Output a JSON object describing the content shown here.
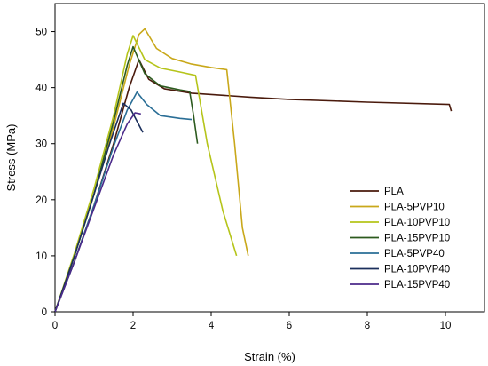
{
  "chart_data": {
    "type": "line",
    "title": "",
    "xlabel": "Strain (%)",
    "ylabel": "Stress (MPa)",
    "xlim": [
      0,
      11
    ],
    "ylim": [
      0,
      55
    ],
    "xticks": [
      0,
      2,
      4,
      6,
      8,
      10
    ],
    "yticks": [
      0,
      10,
      20,
      30,
      40,
      50
    ],
    "grid": false,
    "legend": "center-right",
    "series": [
      {
        "name": "PLA",
        "color": "#4a1a0c",
        "points": [
          [
            0,
            0
          ],
          [
            0.5,
            9
          ],
          [
            1.0,
            19
          ],
          [
            1.5,
            30
          ],
          [
            1.9,
            40
          ],
          [
            2.15,
            45
          ],
          [
            2.4,
            41.5
          ],
          [
            2.8,
            39.8
          ],
          [
            3.5,
            39
          ],
          [
            5,
            38.3
          ],
          [
            6,
            37.9
          ],
          [
            8,
            37.4
          ],
          [
            10.1,
            37
          ],
          [
            10.15,
            35.8
          ]
        ]
      },
      {
        "name": "PLA-5PVP10",
        "color": "#c9a81a",
        "points": [
          [
            0,
            0
          ],
          [
            0.5,
            10
          ],
          [
            1.0,
            21
          ],
          [
            1.5,
            33
          ],
          [
            1.9,
            44
          ],
          [
            2.15,
            49.5
          ],
          [
            2.3,
            50.5
          ],
          [
            2.6,
            47
          ],
          [
            3.0,
            45.2
          ],
          [
            3.5,
            44.2
          ],
          [
            4.0,
            43.6
          ],
          [
            4.4,
            43.2
          ],
          [
            4.6,
            30
          ],
          [
            4.8,
            15
          ],
          [
            4.95,
            10
          ]
        ]
      },
      {
        "name": "PLA-10PVP10",
        "color": "#b5c41a",
        "points": [
          [
            0,
            0
          ],
          [
            0.5,
            10.5
          ],
          [
            1.0,
            22
          ],
          [
            1.5,
            35
          ],
          [
            1.85,
            46
          ],
          [
            2.0,
            49.3
          ],
          [
            2.3,
            45
          ],
          [
            2.7,
            43.5
          ],
          [
            3.2,
            42.8
          ],
          [
            3.6,
            42.2
          ],
          [
            3.9,
            30
          ],
          [
            4.3,
            18
          ],
          [
            4.65,
            10
          ]
        ]
      },
      {
        "name": "PLA-15PVP10",
        "color": "#2c5a1e",
        "points": [
          [
            0,
            0
          ],
          [
            0.5,
            10
          ],
          [
            1.0,
            21
          ],
          [
            1.5,
            34
          ],
          [
            1.85,
            44
          ],
          [
            2.0,
            47.3
          ],
          [
            2.3,
            42.5
          ],
          [
            2.7,
            40.3
          ],
          [
            3.2,
            39.6
          ],
          [
            3.45,
            39.3
          ],
          [
            3.55,
            35
          ],
          [
            3.65,
            30
          ]
        ]
      },
      {
        "name": "PLA-5PVP40",
        "color": "#2a6e96",
        "points": [
          [
            0,
            0
          ],
          [
            0.5,
            9
          ],
          [
            1.0,
            19
          ],
          [
            1.5,
            29.5
          ],
          [
            1.85,
            36
          ],
          [
            2.1,
            39.2
          ],
          [
            2.35,
            37
          ],
          [
            2.7,
            35
          ],
          [
            3.2,
            34.5
          ],
          [
            3.5,
            34.3
          ]
        ]
      },
      {
        "name": "PLA-10PVP40",
        "color": "#1b2f5c",
        "points": [
          [
            0,
            0
          ],
          [
            0.5,
            10
          ],
          [
            1.0,
            21
          ],
          [
            1.4,
            30
          ],
          [
            1.75,
            37.2
          ],
          [
            1.95,
            36
          ],
          [
            2.1,
            34
          ],
          [
            2.25,
            32
          ]
        ]
      },
      {
        "name": "PLA-15PVP40",
        "color": "#4b2a8a",
        "points": [
          [
            0,
            0
          ],
          [
            0.5,
            9
          ],
          [
            1.0,
            18.5
          ],
          [
            1.5,
            28
          ],
          [
            1.85,
            33.5
          ],
          [
            2.05,
            35.5
          ],
          [
            2.2,
            35.3
          ]
        ]
      }
    ]
  }
}
